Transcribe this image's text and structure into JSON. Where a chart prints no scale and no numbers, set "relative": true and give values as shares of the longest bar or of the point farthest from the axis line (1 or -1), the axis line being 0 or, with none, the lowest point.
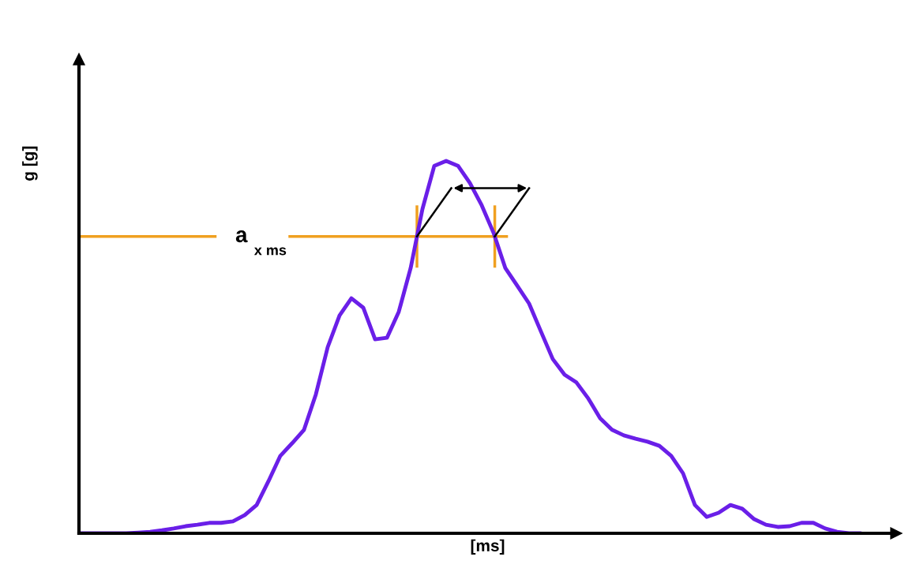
{
  "chart_data": {
    "type": "line",
    "relative": true,
    "xlabel": "[ms]",
    "ylabel": "g [g]",
    "categories": [
      null,
      null,
      null,
      null,
      null,
      null,
      null,
      null,
      null,
      null,
      null,
      null,
      null,
      null,
      null,
      null,
      null,
      null,
      null,
      null,
      null,
      null,
      null,
      null,
      null,
      null,
      null,
      null,
      null,
      null,
      null,
      null,
      null,
      null,
      null,
      null,
      null,
      null,
      null,
      null,
      null,
      null,
      null,
      null,
      null,
      null,
      null,
      null,
      null,
      null,
      null,
      null,
      null,
      null,
      null,
      null,
      null,
      null,
      null,
      null,
      null,
      null,
      null,
      null,
      null,
      null,
      null
    ],
    "series": [
      {
        "color": "#6a1fe8",
        "values": [
          0,
          0,
          0,
          0,
          0,
          0.002,
          0.004,
          0.008,
          0.013,
          0.019,
          0.023,
          0.028,
          0.028,
          0.032,
          0.049,
          0.076,
          0.14,
          0.208,
          0.242,
          0.278,
          0.373,
          0.5,
          0.585,
          0.631,
          0.606,
          0.521,
          0.525,
          0.595,
          0.712,
          0.871,
          0.987,
          1,
          0.987,
          0.941,
          0.881,
          0.807,
          0.712,
          0.665,
          0.617,
          0.542,
          0.468,
          0.426,
          0.405,
          0.362,
          0.309,
          0.278,
          0.263,
          0.254,
          0.246,
          0.235,
          0.208,
          0.161,
          0.076,
          0.044,
          0.055,
          0.076,
          0.066,
          0.038,
          0.023,
          0.017,
          0.019,
          0.028,
          0.028,
          0.013,
          0.004,
          0,
          0
        ]
      }
    ],
    "ref_lines": [
      {
        "axis": "y",
        "value": 0.797,
        "label": "a$_{x ms}$",
        "color": "#f0a020"
      }
    ],
    "grid": false,
    "marker": "none",
    "line_style": "solid"
  }
}
